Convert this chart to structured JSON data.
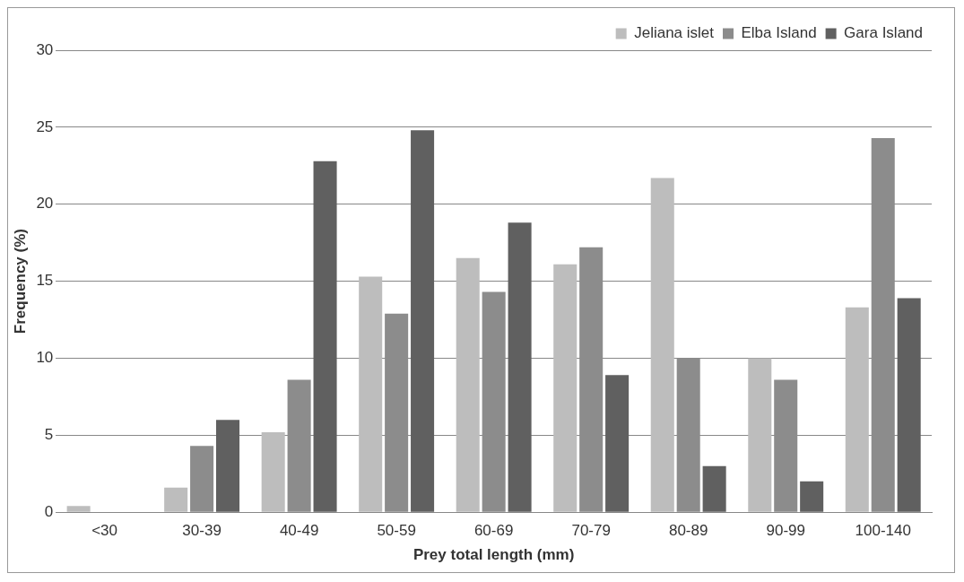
{
  "chart_data": {
    "type": "bar",
    "xlabel": "Prey total length (mm)",
    "ylabel": "Frequency (%)",
    "categories": [
      "<30",
      "30-39",
      "40-49",
      "50-59",
      "60-69",
      "70-79",
      "80-89",
      "90-99",
      "100-140"
    ],
    "series": [
      {
        "name": "Jeliana islet",
        "color": "#bdbdbd",
        "values": [
          0.4,
          1.6,
          5.2,
          15.3,
          16.5,
          16.1,
          21.7,
          10.0,
          13.3
        ]
      },
      {
        "name": "Elba Island",
        "color": "#8c8c8c",
        "values": [
          0,
          4.3,
          8.6,
          12.9,
          14.3,
          17.2,
          10.0,
          8.6,
          24.3
        ]
      },
      {
        "name": "Gara Island",
        "color": "#606060",
        "values": [
          0,
          6.0,
          22.8,
          24.8,
          18.8,
          8.9,
          3.0,
          2.0,
          13.9
        ]
      }
    ],
    "ylim": [
      0,
      30
    ],
    "yticks": [
      0,
      5,
      10,
      15,
      20,
      25,
      30
    ],
    "grid": "y",
    "legend": "top right"
  }
}
